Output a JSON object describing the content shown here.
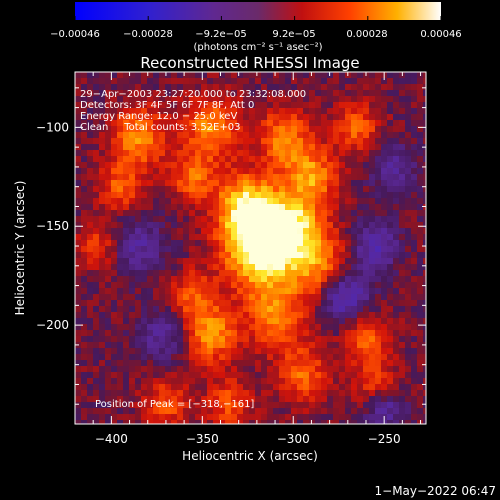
{
  "colorbar": {
    "tick_labels": [
      "−0.00046",
      "−0.00028",
      "−9.2e−05",
      "9.2e−05",
      "0.00028",
      "0.00046"
    ],
    "unit_label": "(photons cm⁻² s⁻¹ asec⁻²)",
    "range": [
      -0.00046,
      0.00046
    ]
  },
  "chart_data": {
    "type": "heatmap",
    "title": "Reconstructed RHESSI Image",
    "xlabel": "Heliocentric X (arcsec)",
    "ylabel": "Heliocentric Y (arcsec)",
    "xlim": [
      -420,
      -227
    ],
    "ylim": [
      -250,
      -72
    ],
    "x_ticks": [
      {
        "value": -400,
        "label": "−400"
      },
      {
        "value": -350,
        "label": "−350"
      },
      {
        "value": -300,
        "label": "−300"
      },
      {
        "value": -250,
        "label": "−250"
      }
    ],
    "y_ticks": [
      {
        "value": -100,
        "label": "−100"
      },
      {
        "value": -150,
        "label": "−150"
      },
      {
        "value": -200,
        "label": "−200"
      }
    ],
    "annotations": [
      "29−Apr−2003 23:27:20.000 to 23:32:08.000",
      "Detectors: 3F 4F 5F 6F 7F 8F, Att 0",
      "Energy Range: 12.0 − 25.0 keV",
      "Clean     Total counts: 3.52E+03"
    ],
    "peak_label": "Position of Peak = [−318,−161]",
    "peak": [
      -318,
      -161
    ],
    "colormap": "rhessi-diverging (blue-purple-red-orange-yellow-white)"
  },
  "footer": {
    "timestamp": "1−May−2022 06:47"
  }
}
